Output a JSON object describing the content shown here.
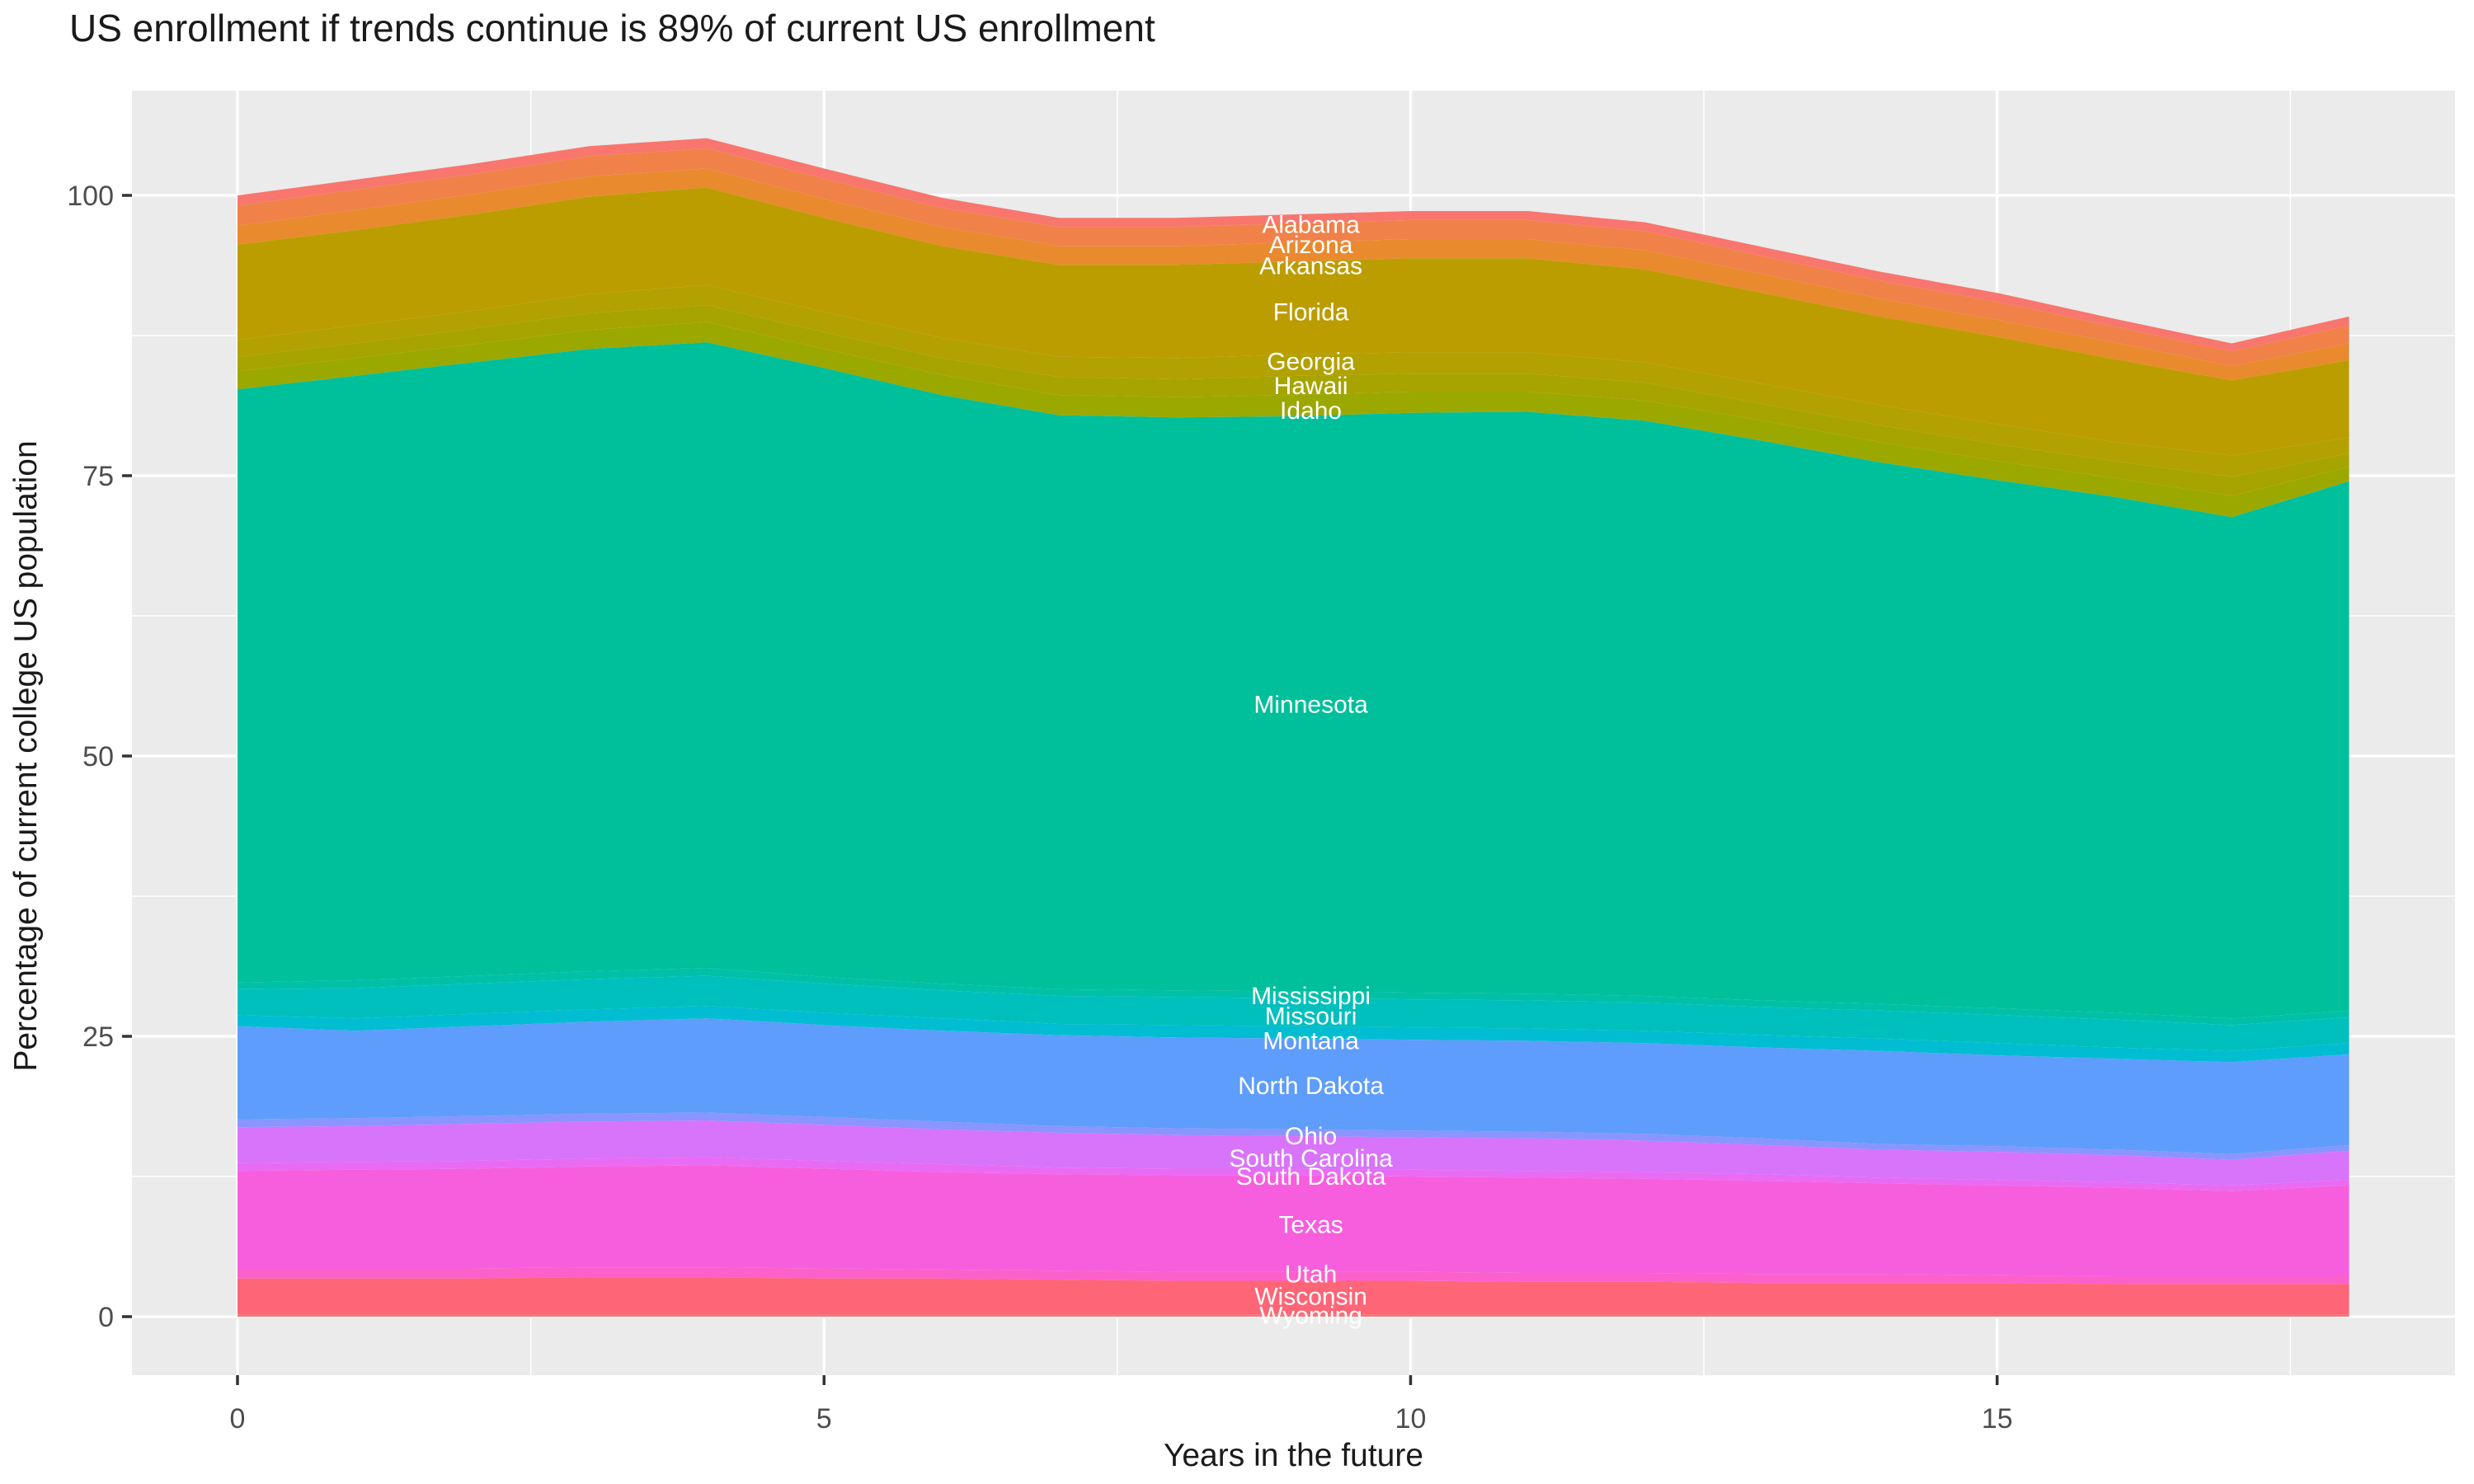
{
  "title": "US enrollment if trends continue is 89% of current US enrollment",
  "colors": {
    "page_bg": "#FFFFFF",
    "panel_bg": "#EBEBEB",
    "grid": "#FFFFFF",
    "tick_text": "#4D4D4D",
    "axis_title_text": "#1A1A1A",
    "title_text": "#1A1A1A",
    "area_label_text": "#FFFFFF",
    "tick_mark": "#333333"
  },
  "chart_data": {
    "type": "area",
    "stacked": true,
    "title": "US enrollment if trends continue is 89% of current US enrollment",
    "xlabel": "Years in the future",
    "ylabel": "Percentage of current college US population",
    "x": [
      0,
      1,
      2,
      3,
      4,
      5,
      6,
      7,
      8,
      9,
      10,
      11,
      12,
      13,
      14,
      15,
      16,
      17,
      18
    ],
    "x_ticks": [
      0,
      5,
      10,
      15
    ],
    "x_minor_ticks": [
      2.5,
      7.5,
      12.5,
      17.5
    ],
    "y_ticks": [
      0,
      25,
      50,
      75,
      100
    ],
    "y_minor_ticks": [
      12.5,
      37.5,
      62.5,
      87.5
    ],
    "xlim": [
      -0.9,
      18.9
    ],
    "ylim": [
      -5.2,
      109.4
    ],
    "grid": true,
    "legend_position": "none",
    "label_x": 9.15,
    "total_by_year": [
      100.0,
      101.4,
      102.8,
      104.4,
      105.1,
      102.4,
      99.8,
      98.0,
      98.0,
      98.3,
      98.6,
      98.6,
      97.6,
      95.4,
      93.2,
      91.3,
      89.0,
      86.8,
      89.2
    ],
    "series": [
      {
        "name": "Alabama",
        "color": "#F8766D",
        "label_y": 97.4,
        "values": [
          0.9,
          0.9,
          0.9,
          0.9,
          0.9,
          0.9,
          0.9,
          0.8,
          0.8,
          0.8,
          0.8,
          0.8,
          0.8,
          0.8,
          0.8,
          0.8,
          0.7,
          0.7,
          0.8
        ]
      },
      {
        "name": "Arizona",
        "color": "#F08149",
        "label_y": 95.6,
        "values": [
          1.8,
          1.8,
          1.8,
          1.8,
          1.8,
          1.8,
          1.7,
          1.7,
          1.7,
          1.7,
          1.7,
          1.7,
          1.7,
          1.6,
          1.6,
          1.6,
          1.4,
          1.3,
          1.6
        ]
      },
      {
        "name": "Arkansas",
        "color": "#E98A2F",
        "label_y": 93.7,
        "values": [
          1.7,
          1.8,
          1.8,
          1.8,
          1.7,
          1.7,
          1.7,
          1.7,
          1.7,
          1.7,
          1.7,
          1.7,
          1.7,
          1.7,
          1.6,
          1.5,
          1.5,
          1.3,
          1.5
        ]
      },
      {
        "name": "Florida",
        "color": "#BC9D00",
        "label_y": 89.6,
        "values": [
          8.5,
          8.5,
          8.6,
          8.7,
          8.7,
          8.4,
          8.2,
          8.2,
          8.3,
          8.3,
          8.4,
          8.4,
          8.3,
          8.1,
          7.9,
          7.8,
          7.4,
          6.7,
          6.9
        ]
      },
      {
        "name": "Georgia",
        "color": "#B2A100",
        "label_y": 85.2,
        "values": [
          1.5,
          1.6,
          1.6,
          1.7,
          1.8,
          1.8,
          1.8,
          1.8,
          1.9,
          1.9,
          1.9,
          1.9,
          1.8,
          1.8,
          1.8,
          1.8,
          1.7,
          1.9,
          1.4
        ]
      },
      {
        "name": "Hawaii",
        "color": "#A7A400",
        "label_y": 83.0,
        "values": [
          1.3,
          1.3,
          1.4,
          1.5,
          1.5,
          1.5,
          1.5,
          1.6,
          1.6,
          1.7,
          1.6,
          1.6,
          1.6,
          1.5,
          1.5,
          1.5,
          1.5,
          1.7,
          1.2
        ]
      },
      {
        "name": "Idaho",
        "color": "#9BA800",
        "label_y": 80.8,
        "values": [
          1.6,
          1.6,
          1.6,
          1.7,
          1.8,
          1.7,
          1.8,
          1.8,
          1.8,
          1.9,
          1.9,
          1.8,
          1.8,
          1.8,
          1.8,
          1.7,
          1.7,
          1.9,
          1.3
        ]
      },
      {
        "name": "Minnesota",
        "color": "#00BF9B",
        "label_y": 54.6,
        "values": [
          52.9,
          53.9,
          54.7,
          55.5,
          55.8,
          54.3,
          52.5,
          51.2,
          51.1,
          51.3,
          51.7,
          51.9,
          51.3,
          49.9,
          48.3,
          47.1,
          46.0,
          44.7,
          47.2
        ]
      },
      {
        "name": "Mississippi",
        "color": "#00C1A7",
        "label_y": 28.6,
        "values": [
          0.6,
          0.7,
          0.7,
          0.7,
          0.7,
          0.6,
          0.6,
          0.6,
          0.6,
          0.6,
          0.6,
          0.6,
          0.6,
          0.6,
          0.6,
          0.6,
          0.6,
          0.6,
          0.6
        ]
      },
      {
        "name": "Missouri",
        "color": "#00C0BE",
        "label_y": 26.8,
        "values": [
          2.3,
          2.7,
          2.7,
          2.7,
          2.7,
          2.6,
          2.5,
          2.5,
          2.5,
          2.5,
          2.5,
          2.5,
          2.5,
          2.5,
          2.5,
          2.5,
          2.5,
          2.3,
          2.3
        ]
      },
      {
        "name": "Montana",
        "color": "#00BDD2",
        "label_y": 24.6,
        "values": [
          1.0,
          1.1,
          1.1,
          1.1,
          1.1,
          1.1,
          1.1,
          1.0,
          1.1,
          1.1,
          1.1,
          1.1,
          1.1,
          1.1,
          1.1,
          1.1,
          1.0,
          1.0,
          1.0
        ]
      },
      {
        "name": "North Dakota",
        "color": "#5E9DFC",
        "label_y": 20.6,
        "values": [
          8.3,
          7.8,
          8.0,
          8.2,
          8.4,
          8.2,
          8.1,
          8.1,
          8.1,
          8.1,
          8.1,
          8.1,
          8.1,
          8.1,
          8.3,
          8.1,
          8.1,
          8.2,
          8.1
        ]
      },
      {
        "name": "Ohio",
        "color": "#8A95FF",
        "label_y": 16.1,
        "values": [
          0.7,
          0.7,
          0.7,
          0.7,
          0.7,
          0.7,
          0.7,
          0.6,
          0.6,
          0.6,
          0.6,
          0.6,
          0.6,
          0.6,
          0.5,
          0.5,
          0.5,
          0.5,
          0.5
        ]
      },
      {
        "name": "South Carolina",
        "color": "#D874F9",
        "label_y": 14.1,
        "values": [
          3.2,
          3.2,
          3.3,
          3.3,
          3.3,
          3.2,
          3.1,
          3.1,
          3.0,
          2.9,
          2.9,
          2.9,
          2.8,
          2.6,
          2.5,
          2.5,
          2.4,
          2.3,
          2.6
        ]
      },
      {
        "name": "South Dakota",
        "color": "#E96BF4",
        "label_y": 12.5,
        "values": [
          0.7,
          0.7,
          0.7,
          0.7,
          0.7,
          0.7,
          0.7,
          0.6,
          0.6,
          0.6,
          0.6,
          0.6,
          0.6,
          0.6,
          0.5,
          0.5,
          0.5,
          0.5,
          0.5
        ]
      },
      {
        "name": "Texas",
        "color": "#F75EDE",
        "label_y": 8.2,
        "values": [
          8.7,
          8.8,
          8.9,
          9.0,
          9.1,
          8.9,
          8.7,
          8.6,
          8.6,
          8.6,
          8.5,
          8.5,
          8.4,
          8.3,
          8.1,
          8.0,
          7.9,
          7.6,
          8.1
        ]
      },
      {
        "name": "Utah",
        "color": "#FC61CB",
        "label_y": 3.8,
        "values": [
          0.9,
          0.9,
          0.9,
          0.9,
          0.9,
          0.9,
          0.8,
          0.8,
          0.8,
          0.8,
          0.8,
          0.8,
          0.8,
          0.8,
          0.8,
          0.7,
          0.7,
          0.7,
          0.7
        ]
      },
      {
        "name": "Wisconsin",
        "color": "#FE6577",
        "label_y": 1.8,
        "values": [
          3.2,
          3.2,
          3.2,
          3.3,
          3.3,
          3.2,
          3.2,
          3.1,
          3.0,
          3.0,
          3.0,
          2.9,
          2.9,
          2.8,
          2.8,
          2.8,
          2.7,
          2.7,
          2.7
        ]
      },
      {
        "name": "Wyoming",
        "color": "#FB7072",
        "label_y": 0.1,
        "values": [
          0.2,
          0.2,
          0.2,
          0.2,
          0.2,
          0.2,
          0.2,
          0.2,
          0.2,
          0.2,
          0.2,
          0.2,
          0.2,
          0.2,
          0.2,
          0.2,
          0.2,
          0.2,
          0.2
        ]
      }
    ]
  }
}
